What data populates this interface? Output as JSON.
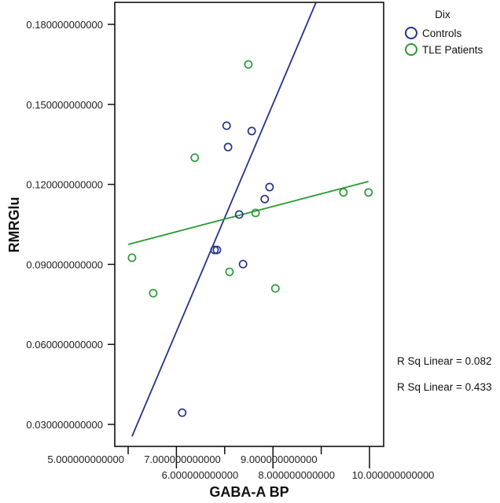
{
  "chart_data": {
    "type": "scatter",
    "title": "",
    "xlabel": "GABA-A BP",
    "ylabel": "RMRGlu",
    "xlim": [
      4.96,
      10.3
    ],
    "ylim": [
      0.0215,
      0.189
    ],
    "x_ticks": [
      5,
      6,
      7,
      8,
      9,
      10
    ],
    "x_tick_labels": [
      "5.000000000000",
      "6.000000000000",
      "7.000000000000",
      "8.000000000000",
      "9.000000000000",
      "10.000000000000"
    ],
    "y_ticks": [
      0.18,
      0.15,
      0.12,
      0.09,
      0.06,
      0.03
    ],
    "y_tick_labels": [
      "0.180000000000",
      "0.150000000000",
      "0.120000000000",
      "0.090000000000",
      "0.060000000000",
      "0.030000000000"
    ],
    "grid": false,
    "legend": {
      "title": "Dix",
      "placement": "top-right",
      "entries": [
        "Controls",
        "TLE Patients"
      ]
    },
    "series": [
      {
        "name": "Controls",
        "color": "#27338a",
        "points": [
          {
            "x": 7.04,
            "y": 0.142
          },
          {
            "x": 7.56,
            "y": 0.14
          },
          {
            "x": 7.07,
            "y": 0.134
          },
          {
            "x": 7.93,
            "y": 0.119
          },
          {
            "x": 7.83,
            "y": 0.1145
          },
          {
            "x": 7.3,
            "y": 0.1087
          },
          {
            "x": 6.79,
            "y": 0.0954
          },
          {
            "x": 6.84,
            "y": 0.0954
          },
          {
            "x": 7.38,
            "y": 0.0901
          },
          {
            "x": 6.12,
            "y": 0.0344
          }
        ],
        "fit_line": {
          "x": [
            5.08,
            8.91
          ],
          "y": [
            0.0255,
            0.189
          ]
        },
        "r_sq_label": "R Sq Linear = 0.433"
      },
      {
        "name": "TLE Patients",
        "color": "#2a9a33",
        "points": [
          {
            "x": 7.49,
            "y": 0.165
          },
          {
            "x": 6.38,
            "y": 0.13
          },
          {
            "x": 7.64,
            "y": 0.1093
          },
          {
            "x": 7.1,
            "y": 0.0872
          },
          {
            "x": 8.05,
            "y": 0.081
          },
          {
            "x": 5.08,
            "y": 0.0925
          },
          {
            "x": 5.52,
            "y": 0.0792
          },
          {
            "x": 9.46,
            "y": 0.117
          },
          {
            "x": 9.98,
            "y": 0.117
          }
        ],
        "fit_line": {
          "x": [
            5.0,
            9.98
          ],
          "y": [
            0.0975,
            0.1211
          ]
        },
        "r_sq_label": "R Sq Linear = 0.082"
      }
    ],
    "annotations": [
      "R Sq Linear = 0.082",
      "R Sq Linear = 0.433"
    ]
  }
}
